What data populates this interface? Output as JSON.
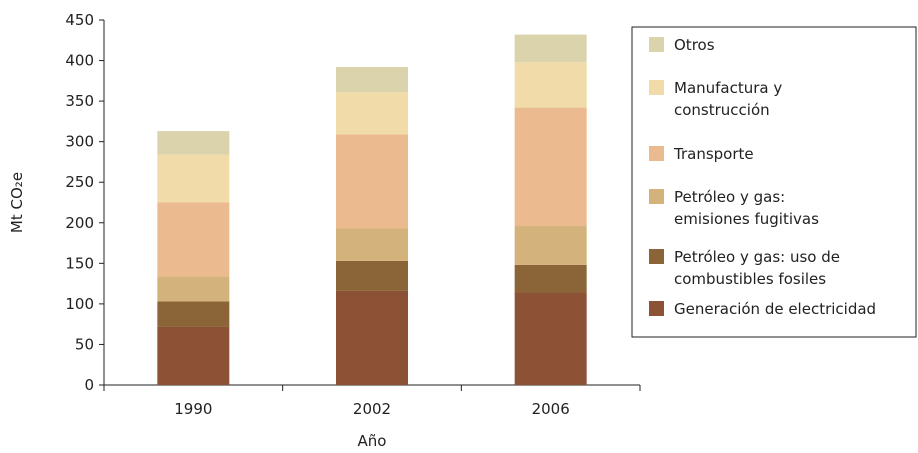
{
  "chart_data": {
    "type": "bar",
    "stacked": true,
    "categories": [
      "1990",
      "2002",
      "2006"
    ],
    "xlabel": "Año",
    "ylabel": "Mt CO₂e",
    "ylim": [
      0,
      450
    ],
    "yticks": [
      0,
      50,
      100,
      150,
      200,
      250,
      300,
      350,
      400,
      450
    ],
    "grid": false,
    "legend_position": "right",
    "series": [
      {
        "name": "Generación de electricidad",
        "color": "#8b5236",
        "values": [
          72,
          116,
          114
        ]
      },
      {
        "name": "Petróleo y gas: uso de combustibles fosiles",
        "color": "#8b6537",
        "values": [
          31,
          37,
          34
        ]
      },
      {
        "name": "Petróleo y gas: emisiones fugitivas",
        "color": "#d4b27c",
        "values": [
          31,
          40,
          48
        ]
      },
      {
        "name": "Transporte",
        "color": "#ebba8e",
        "values": [
          91,
          116,
          146
        ]
      },
      {
        "name": "Manufactura y construcción",
        "color": "#f0dba9",
        "values": [
          59,
          52,
          56
        ]
      },
      {
        "name": "Otros",
        "color": "#dbd3ab",
        "values": [
          29,
          31,
          34
        ]
      }
    ],
    "legend": [
      {
        "series": 5,
        "lines": [
          "Otros"
        ]
      },
      {
        "series": 4,
        "lines": [
          "Manufactura y",
          "construcción"
        ]
      },
      {
        "series": 3,
        "lines": [
          "Transporte"
        ]
      },
      {
        "series": 2,
        "lines": [
          "Petróleo y gas:",
          "emisiones fugitivas"
        ]
      },
      {
        "series": 1,
        "lines": [
          "Petróleo y gas: uso de",
          "combustibles fosiles"
        ]
      },
      {
        "series": 0,
        "lines": [
          "Generación de electricidad"
        ]
      }
    ]
  }
}
